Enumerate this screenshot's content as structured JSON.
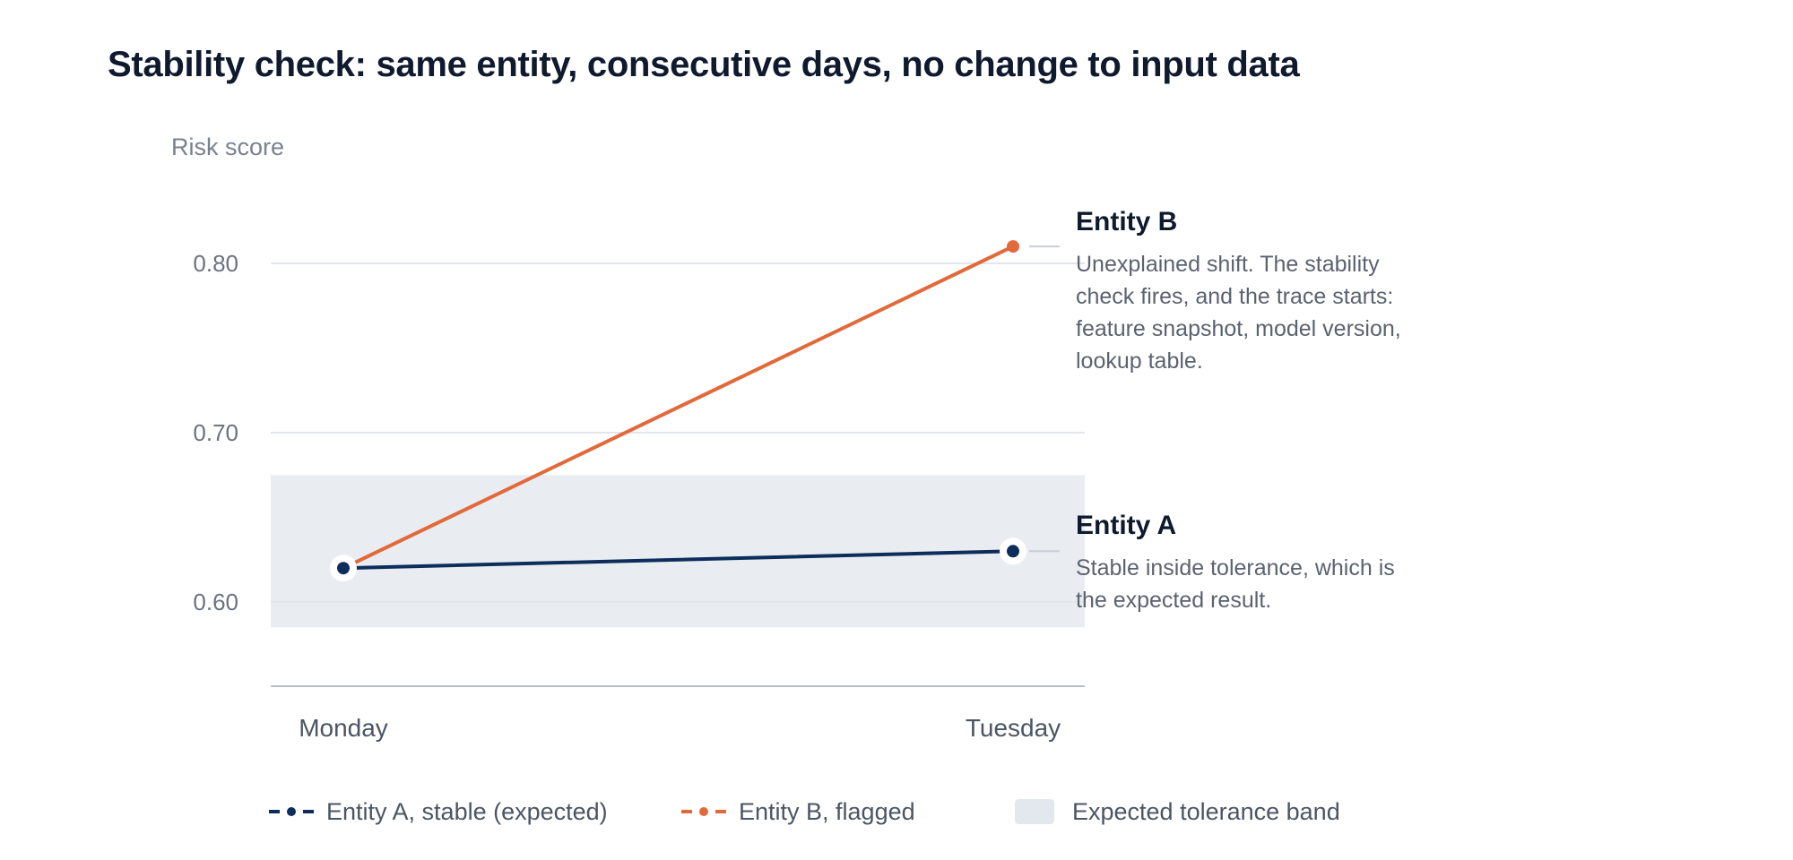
{
  "colors": {
    "entity_a": "#0d2d5c",
    "entity_b": "#e2693a",
    "band": "#e9edf2",
    "grid": "#e2e5ea",
    "axis": "#b8bdc6"
  },
  "chart_data": {
    "type": "line",
    "title": "Stability check: same entity, consecutive days, no change to input data",
    "ylabel": "Risk score",
    "xlabel": "",
    "categories": [
      "Monday",
      "Tuesday"
    ],
    "ylim": [
      0.55,
      0.85
    ],
    "yticks": [
      "0.60",
      "0.70",
      "0.80"
    ],
    "ytick_values": [
      0.6,
      0.7,
      0.8
    ],
    "grid": true,
    "tolerance_band": [
      0.585,
      0.675
    ],
    "series": [
      {
        "name": "Entity A, stable (expected)",
        "values": [
          0.62,
          0.63
        ]
      },
      {
        "name": "Entity B, flagged",
        "values": [
          0.62,
          0.81
        ]
      }
    ],
    "annotations": [
      {
        "title": "Entity B",
        "lines": [
          "Unexplained shift. The stability",
          "check fires, and the trace starts:",
          "feature snapshot, model version,",
          "lookup table."
        ]
      },
      {
        "title": "Entity A",
        "lines": [
          "Stable inside tolerance, which is",
          "the expected result."
        ]
      }
    ],
    "legend": {
      "position": "bottom",
      "items": [
        "Entity A, stable (expected)",
        "Entity B, flagged",
        "Expected tolerance band"
      ]
    }
  }
}
